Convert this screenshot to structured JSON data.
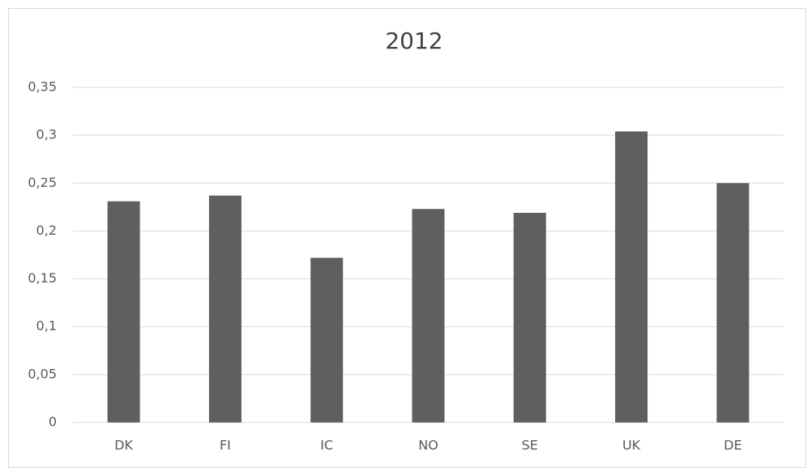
{
  "chart_data": {
    "type": "bar",
    "title": "2012",
    "categories": [
      "DK",
      "FI",
      "IC",
      "NO",
      "SE",
      "UK",
      "DE"
    ],
    "values": [
      0.231,
      0.237,
      0.172,
      0.223,
      0.219,
      0.304,
      0.25
    ],
    "color": "#5f5f5f",
    "ylim": [
      0,
      0.35
    ],
    "yticks": [
      0,
      {
        "value": 0.05,
        "label": "0,05"
      },
      {
        "value": 0.1,
        "label": "0,1"
      },
      {
        "value": 0.15,
        "label": "0,15"
      },
      {
        "value": 0.2,
        "label": "0,2"
      },
      {
        "value": 0.25,
        "label": "0,25"
      },
      {
        "value": 0.3,
        "label": "0,3"
      },
      {
        "value": 0.35,
        "label": "0,35"
      }
    ],
    "grid": true
  }
}
